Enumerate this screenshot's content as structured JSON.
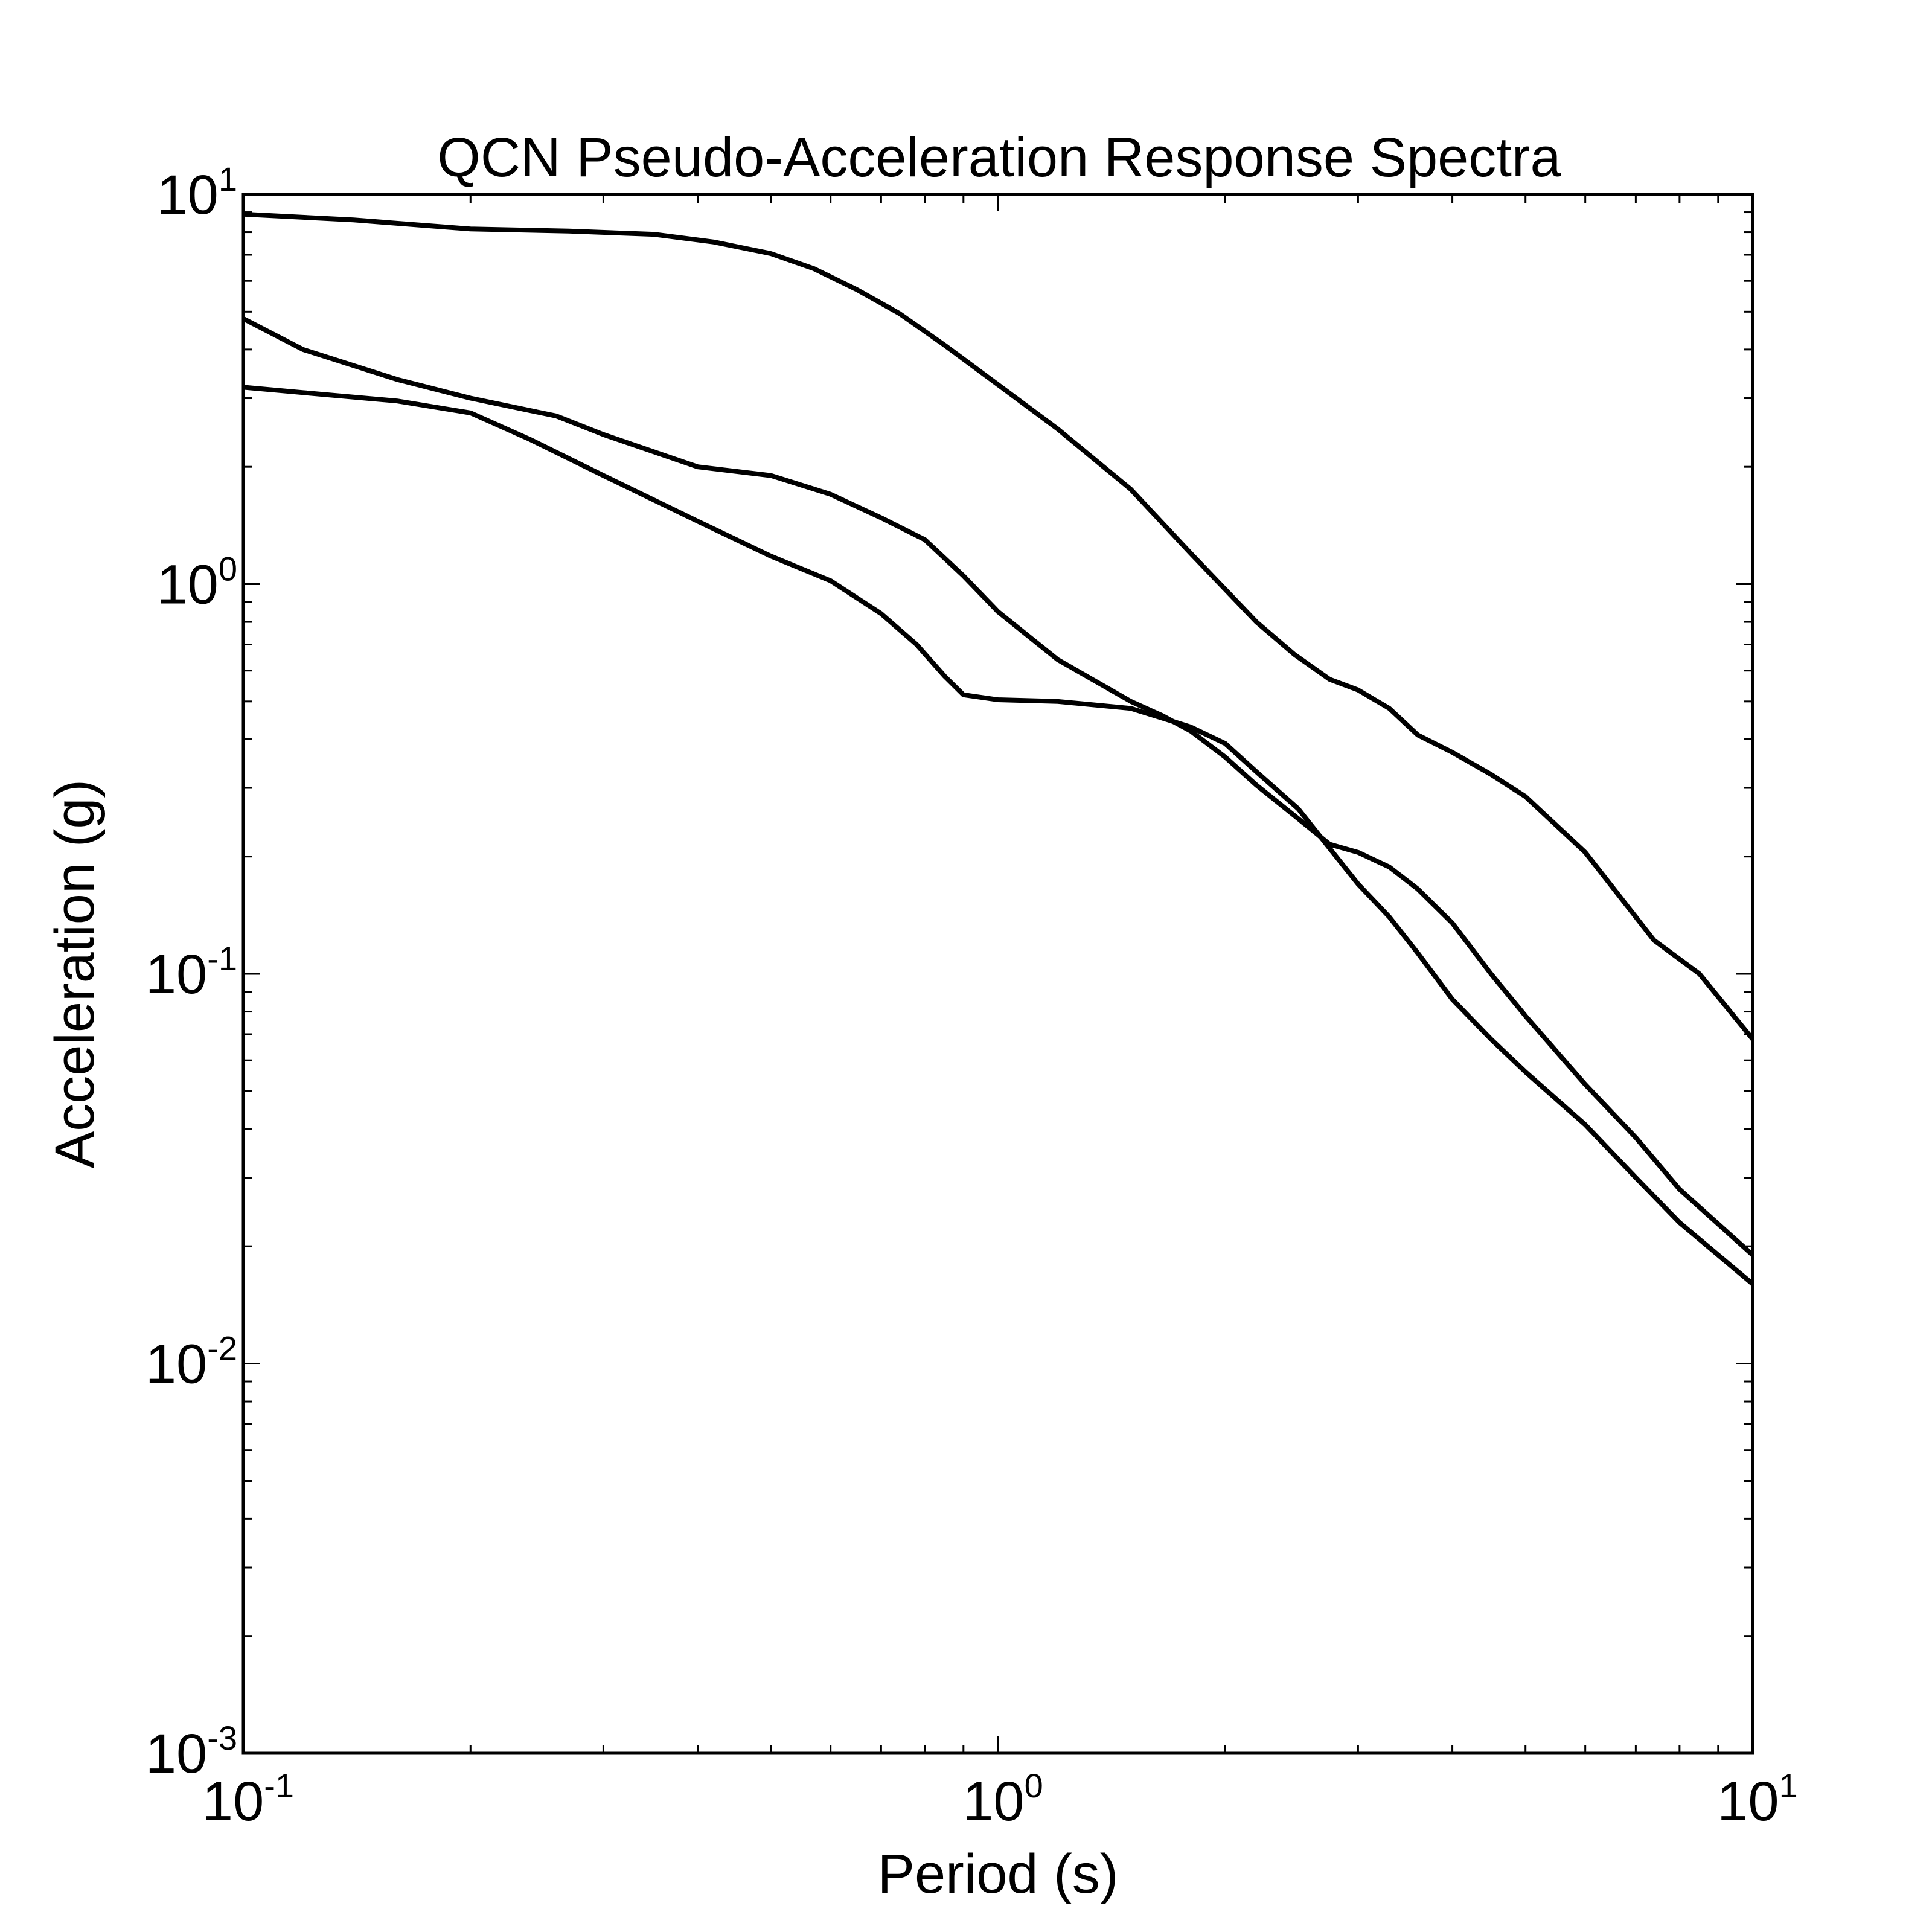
{
  "chart_data": {
    "type": "line",
    "title": "QCN Pseudo-Acceleration Response Spectra",
    "xlabel": "Period (s)",
    "ylabel": "Acceleration (g)",
    "xscale": "log",
    "yscale": "log",
    "xlim": [
      0.1,
      10
    ],
    "ylim": [
      0.001,
      10
    ],
    "grid": false,
    "line_color": "#000000",
    "x_ticks": [
      {
        "value": 0.1,
        "base": "10",
        "exp": "-1"
      },
      {
        "value": 1,
        "base": "10",
        "exp": "0"
      },
      {
        "value": 10,
        "base": "10",
        "exp": "1"
      }
    ],
    "y_ticks": [
      {
        "value": 0.001,
        "base": "10",
        "exp": "-3"
      },
      {
        "value": 0.01,
        "base": "10",
        "exp": "-2"
      },
      {
        "value": 0.1,
        "base": "10",
        "exp": "-1"
      },
      {
        "value": 1,
        "base": "10",
        "exp": "0"
      },
      {
        "value": 10,
        "base": "10",
        "exp": "1"
      }
    ],
    "series": [
      {
        "x": [
          0.1,
          0.14,
          0.2,
          0.27,
          0.35,
          0.42,
          0.5,
          0.57,
          0.65,
          0.74,
          0.85,
          1.0,
          1.2,
          1.5,
          1.8,
          2.2,
          2.47,
          2.75,
          3.0,
          3.3,
          3.6,
          4.0,
          4.5,
          5.0,
          6.0,
          7.4,
          8.5,
          10.0
        ],
        "y": [
          8.9,
          8.6,
          8.15,
          8.05,
          7.9,
          7.55,
          7.05,
          6.45,
          5.7,
          4.95,
          4.1,
          3.25,
          2.5,
          1.75,
          1.2,
          0.8,
          0.66,
          0.57,
          0.535,
          0.48,
          0.41,
          0.37,
          0.325,
          0.285,
          0.205,
          0.122,
          0.1,
          0.068
        ]
      },
      {
        "x": [
          0.1,
          0.12,
          0.16,
          0.2,
          0.26,
          0.3,
          0.4,
          0.5,
          0.6,
          0.7,
          0.8,
          0.9,
          1.0,
          1.2,
          1.5,
          1.65,
          1.8,
          2.0,
          2.2,
          2.5,
          2.75,
          3.0,
          3.3,
          3.6,
          4.0,
          4.5,
          5.0,
          6.0,
          7.0,
          8.0,
          10.0
        ],
        "y": [
          4.8,
          4.0,
          3.35,
          3.0,
          2.7,
          2.42,
          2.0,
          1.9,
          1.7,
          1.48,
          1.3,
          1.05,
          0.85,
          0.64,
          0.5,
          0.46,
          0.42,
          0.36,
          0.305,
          0.25,
          0.215,
          0.205,
          0.188,
          0.165,
          0.135,
          0.1,
          0.078,
          0.052,
          0.038,
          0.028,
          0.019
        ]
      },
      {
        "x": [
          0.1,
          0.12,
          0.16,
          0.2,
          0.24,
          0.3,
          0.4,
          0.5,
          0.6,
          0.7,
          0.78,
          0.85,
          0.9,
          1.0,
          1.2,
          1.5,
          1.8,
          2.0,
          2.2,
          2.5,
          2.75,
          3.0,
          3.3,
          3.6,
          4.0,
          4.5,
          5.0,
          6.0,
          7.0,
          8.0,
          10.0
        ],
        "y": [
          3.2,
          3.1,
          2.95,
          2.75,
          2.35,
          1.9,
          1.45,
          1.18,
          1.02,
          0.84,
          0.7,
          0.58,
          0.52,
          0.505,
          0.5,
          0.48,
          0.43,
          0.39,
          0.33,
          0.265,
          0.21,
          0.17,
          0.14,
          0.113,
          0.086,
          0.068,
          0.056,
          0.041,
          0.03,
          0.023,
          0.016
        ]
      }
    ]
  }
}
